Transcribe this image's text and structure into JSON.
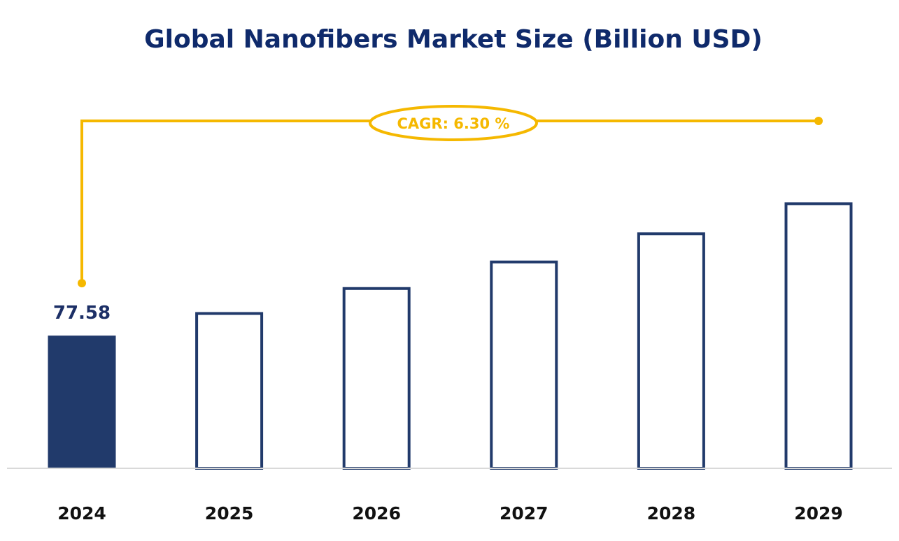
{
  "chart_data": {
    "type": "bar",
    "title": "Global Nanofibers Market Size (Billion USD)",
    "xlabel": "",
    "ylabel": "",
    "categories": [
      "2024",
      "2025",
      "2026",
      "2027",
      "2028",
      "2029"
    ],
    "values": [
      77.58,
      82.47,
      87.66,
      93.18,
      99.05,
      105.29
    ],
    "data_labels": {
      "2024": "77.58"
    },
    "ylim": [
      50,
      110
    ],
    "grid": false,
    "legend": "none",
    "annotation": {
      "text": "CAGR: 6.30 %",
      "from": "2024",
      "to": "2029"
    },
    "colors": {
      "filled_bar": "#213a6b",
      "outline_bar": "#213a6b",
      "annotation": "#f5b800",
      "title": "#0f2a6b",
      "baseline": "#d9d9d9"
    }
  }
}
